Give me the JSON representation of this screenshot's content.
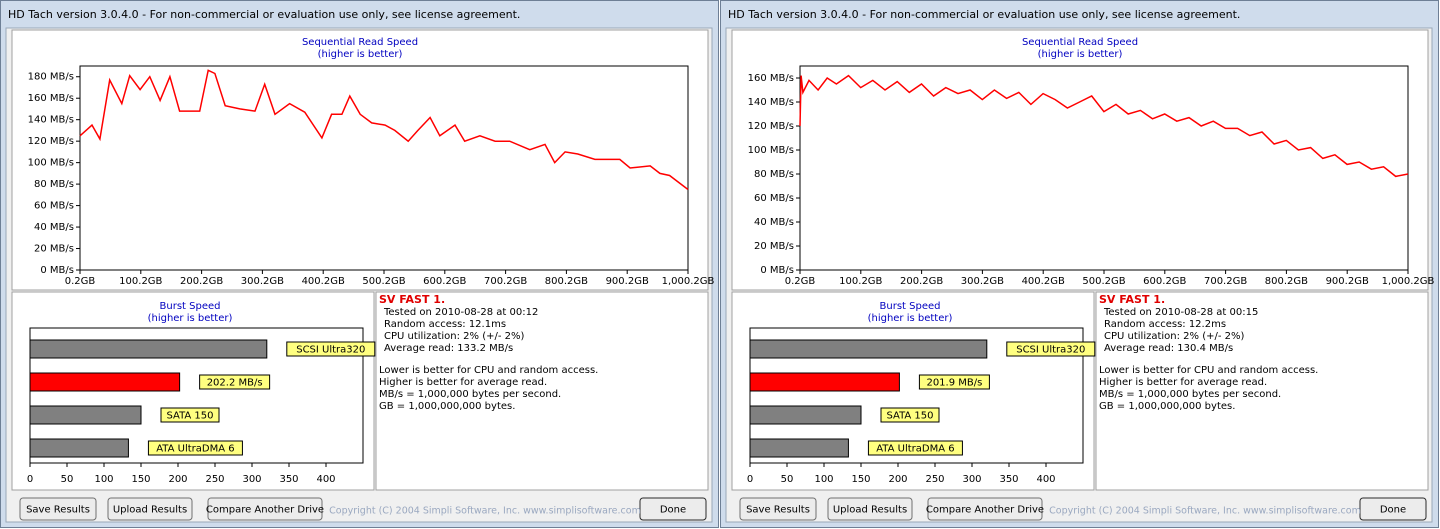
{
  "windows": [
    {
      "title": "HD Tach version 3.0.4.0  - For non-commercial or evaluation use only, see license agreement.",
      "read_chart": {
        "type": "line",
        "title": "Sequential Read Speed",
        "subtitle": "(higher is better)",
        "color": "#ff0000",
        "x": [
          0.2,
          20,
          33,
          49,
          69,
          82,
          99,
          115,
          132,
          148,
          164,
          197,
          211,
          222,
          239,
          263,
          288,
          304,
          321,
          345,
          370,
          398,
          414,
          431,
          444,
          461,
          480,
          502,
          518,
          540,
          556,
          576,
          592,
          617,
          633,
          658,
          683,
          707,
          740,
          765,
          781,
          798,
          819,
          847,
          888,
          905,
          938,
          954,
          970,
          1000.2
        ],
        "values": [
          125,
          135,
          122,
          177,
          155,
          181,
          168,
          180,
          158,
          180,
          148,
          148,
          186,
          183,
          153,
          150,
          148,
          173,
          145,
          155,
          147,
          123,
          145,
          145,
          162,
          145,
          137,
          135,
          130,
          120,
          130,
          142,
          125,
          135,
          120,
          125,
          120,
          120,
          112,
          117,
          100,
          110,
          108,
          103,
          103,
          95,
          97,
          90,
          88,
          75
        ],
        "xlim": [
          0.2,
          1000.2
        ],
        "xticks": [
          {
            "value": 0.2,
            "label": "0.2GB"
          },
          {
            "value": 100.2,
            "label": "100.2GB"
          },
          {
            "value": 200.2,
            "label": "200.2GB"
          },
          {
            "value": 300.2,
            "label": "300.2GB"
          },
          {
            "value": 400.2,
            "label": "400.2GB"
          },
          {
            "value": 500.2,
            "label": "500.2GB"
          },
          {
            "value": 600.2,
            "label": "600.2GB"
          },
          {
            "value": 700.2,
            "label": "700.2GB"
          },
          {
            "value": 800.2,
            "label": "800.2GB"
          },
          {
            "value": 900.2,
            "label": "900.2GB"
          },
          {
            "value": 1000.2,
            "label": "1,000.2GB"
          }
        ],
        "ylim": [
          0,
          190
        ],
        "yticks": [
          {
            "value": 0,
            "label": "0 MB/s"
          },
          {
            "value": 20,
            "label": "20 MB/s"
          },
          {
            "value": 40,
            "label": "40 MB/s"
          },
          {
            "value": 60,
            "label": "60 MB/s"
          },
          {
            "value": 80,
            "label": "80 MB/s"
          },
          {
            "value": 100,
            "label": "100 MB/s"
          },
          {
            "value": 120,
            "label": "120 MB/s"
          },
          {
            "value": 140,
            "label": "140 MB/s"
          },
          {
            "value": 160,
            "label": "160 MB/s"
          },
          {
            "value": 180,
            "label": "180 MB/s"
          }
        ]
      },
      "burst_chart": {
        "type": "bar",
        "title": "Burst Speed",
        "subtitle": "(higher is better)",
        "bars": [
          {
            "label": "SCSI Ultra320",
            "value": 320,
            "color": "#808080"
          },
          {
            "label": "202.2 MB/s",
            "value": 202.2,
            "color": "#ff0000"
          },
          {
            "label": "SATA 150",
            "value": 150,
            "color": "#808080"
          },
          {
            "label": "ATA UltraDMA 6",
            "value": 133,
            "color": "#808080"
          }
        ],
        "xlim": [
          0,
          450
        ],
        "xticks": [
          0,
          50,
          100,
          150,
          200,
          250,
          300,
          350,
          400
        ]
      },
      "info": {
        "heading": "SV FAST 1.",
        "lines": [
          "Tested on 2010-08-28 at 00:12",
          "Random access: 12.1ms",
          "CPU utilization: 2% (+/- 2%)",
          "Average read: 133.2 MB/s"
        ],
        "notes": [
          "Lower is better for CPU and random access.",
          "Higher is better for average read.",
          "MB/s = 1,000,000 bytes per second.",
          "GB = 1,000,000,000 bytes."
        ]
      },
      "buttons": [
        "Save Results",
        "Upload Results",
        "Compare Another Drive",
        "Done"
      ],
      "copyright": "Copyright (C) 2004 Simpli Software, Inc. www.simplisoftware.com"
    },
    {
      "title": "HD Tach version 3.0.4.0  - For non-commercial or evaluation use only, see license agreement.",
      "read_chart": {
        "type": "line",
        "title": "Sequential Read Speed",
        "subtitle": "(higher is better)",
        "color": "#ff0000",
        "x": [
          0.2,
          2,
          5,
          15,
          30,
          45,
          60,
          80,
          100,
          120,
          140,
          160,
          180,
          200,
          220,
          240,
          260,
          280,
          300,
          320,
          340,
          360,
          380,
          400,
          420,
          440,
          460,
          480,
          500,
          520,
          540,
          560,
          580,
          600,
          620,
          640,
          660,
          680,
          700,
          720,
          740,
          760,
          780,
          800,
          820,
          840,
          860,
          880,
          900,
          920,
          940,
          960,
          980,
          1000.2
        ],
        "values": [
          120,
          162,
          148,
          158,
          150,
          160,
          155,
          162,
          152,
          158,
          150,
          157,
          148,
          155,
          145,
          152,
          147,
          150,
          142,
          150,
          143,
          148,
          138,
          147,
          142,
          135,
          140,
          145,
          132,
          138,
          130,
          133,
          126,
          130,
          124,
          127,
          120,
          124,
          118,
          118,
          112,
          115,
          105,
          108,
          100,
          102,
          93,
          96,
          88,
          90,
          84,
          86,
          78,
          80
        ],
        "xlim": [
          0.2,
          1000.2
        ],
        "xticks": [
          {
            "value": 0.2,
            "label": "0.2GB"
          },
          {
            "value": 100.2,
            "label": "100.2GB"
          },
          {
            "value": 200.2,
            "label": "200.2GB"
          },
          {
            "value": 300.2,
            "label": "300.2GB"
          },
          {
            "value": 400.2,
            "label": "400.2GB"
          },
          {
            "value": 500.2,
            "label": "500.2GB"
          },
          {
            "value": 600.2,
            "label": "600.2GB"
          },
          {
            "value": 700.2,
            "label": "700.2GB"
          },
          {
            "value": 800.2,
            "label": "800.2GB"
          },
          {
            "value": 900.2,
            "label": "900.2GB"
          },
          {
            "value": 1000.2,
            "label": "1,000.2GB"
          }
        ],
        "ylim": [
          0,
          170
        ],
        "yticks": [
          {
            "value": 0,
            "label": "0 MB/s"
          },
          {
            "value": 20,
            "label": "20 MB/s"
          },
          {
            "value": 40,
            "label": "40 MB/s"
          },
          {
            "value": 60,
            "label": "60 MB/s"
          },
          {
            "value": 80,
            "label": "80 MB/s"
          },
          {
            "value": 100,
            "label": "100 MB/s"
          },
          {
            "value": 120,
            "label": "120 MB/s"
          },
          {
            "value": 140,
            "label": "140 MB/s"
          },
          {
            "value": 160,
            "label": "160 MB/s"
          }
        ]
      },
      "burst_chart": {
        "type": "bar",
        "title": "Burst Speed",
        "subtitle": "(higher is better)",
        "bars": [
          {
            "label": "SCSI Ultra320",
            "value": 320,
            "color": "#808080"
          },
          {
            "label": "201.9 MB/s",
            "value": 201.9,
            "color": "#ff0000"
          },
          {
            "label": "SATA 150",
            "value": 150,
            "color": "#808080"
          },
          {
            "label": "ATA UltraDMA 6",
            "value": 133,
            "color": "#808080"
          }
        ],
        "xlim": [
          0,
          450
        ],
        "xticks": [
          0,
          50,
          100,
          150,
          200,
          250,
          300,
          350,
          400
        ]
      },
      "info": {
        "heading": "SV FAST 1.",
        "lines": [
          "Tested on 2010-08-28 at 00:15",
          "Random access: 12.2ms",
          "CPU utilization: 2% (+/- 2%)",
          "Average read: 130.4 MB/s"
        ],
        "notes": [
          "Lower is better for CPU and random access.",
          "Higher is better for average read.",
          "MB/s = 1,000,000 bytes per second.",
          "GB = 1,000,000,000 bytes."
        ]
      },
      "buttons": [
        "Save Results",
        "Upload Results",
        "Compare Another Drive",
        "Done"
      ],
      "copyright": "Copyright (C) 2004 Simpli Software, Inc. www.simplisoftware.com"
    }
  ]
}
